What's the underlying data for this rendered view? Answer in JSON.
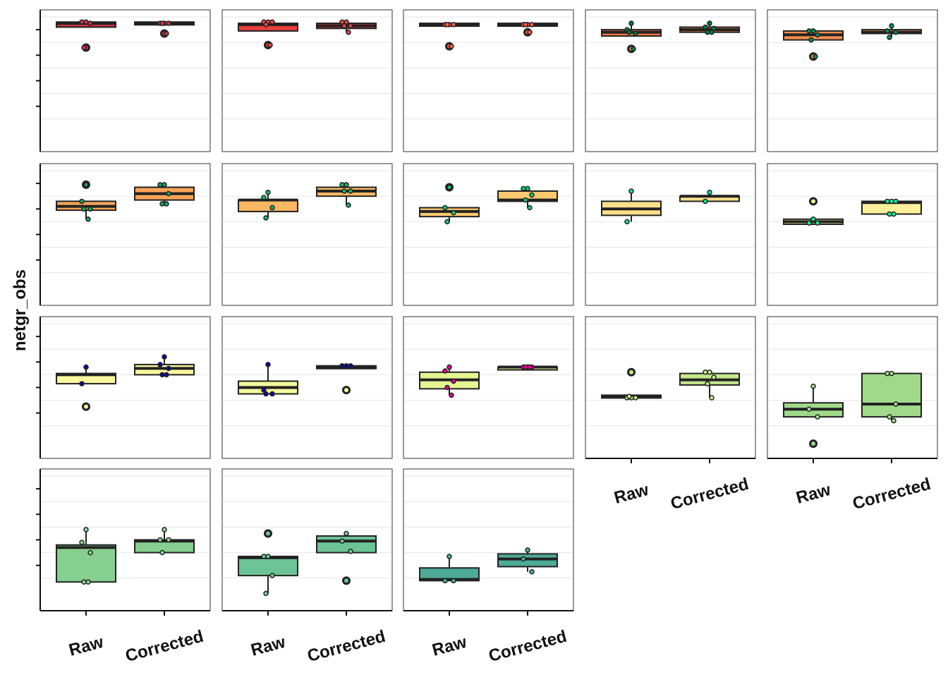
{
  "chart_data": {
    "type": "box",
    "ylabel": "netgr_obs",
    "xlabel": "",
    "categories": [
      "Raw",
      "Corrected"
    ],
    "ylim": [
      0,
      1
    ],
    "grid": true,
    "legend": "none",
    "panels": [
      {
        "fill": "#cb2f45",
        "raw": {
          "q1": 0.92,
          "med": 0.95,
          "q3": 0.96,
          "wmin": 0.96,
          "wmax": 0.96,
          "points": [
            0.96,
            0.96,
            0.95,
            0.76
          ],
          "outliers": [
            0.76
          ]
        },
        "corrected": {
          "q1": 0.94,
          "med": 0.95,
          "q3": 0.96,
          "wmin": 0.96,
          "wmax": 0.96,
          "points": [
            0.95,
            0.95,
            0.95,
            0.95,
            0.87
          ],
          "outliers": [
            0.87
          ]
        }
      },
      {
        "fill": "#e8403d",
        "raw": {
          "q1": 0.89,
          "med": 0.94,
          "q3": 0.95,
          "wmin": 0.96,
          "wmax": 0.96,
          "points": [
            0.96,
            0.96,
            0.96,
            0.94,
            0.78
          ],
          "outliers": [
            0.78
          ]
        },
        "corrected": {
          "q1": 0.91,
          "med": 0.93,
          "q3": 0.95,
          "wmin": 0.88,
          "wmax": 0.96,
          "points": [
            0.96,
            0.96,
            0.93,
            0.93,
            0.88
          ],
          "outliers": []
        }
      },
      {
        "fill": "#f05b42",
        "raw": {
          "q1": 0.93,
          "med": 0.94,
          "q3": 0.95,
          "wmin": 0.94,
          "wmax": 0.95,
          "points": [
            0.94,
            0.94,
            0.94,
            0.94,
            0.77
          ],
          "outliers": [
            0.77
          ]
        },
        "corrected": {
          "q1": 0.93,
          "med": 0.94,
          "q3": 0.95,
          "wmin": 0.94,
          "wmax": 0.95,
          "points": [
            0.94,
            0.94,
            0.94,
            0.94,
            0.88
          ],
          "outliers": [
            0.88
          ]
        }
      },
      {
        "fill": "#f4773f",
        "raw": {
          "q1": 0.85,
          "med": 0.88,
          "q3": 0.9,
          "wmin": 0.85,
          "wmax": 0.95,
          "points": [
            0.95,
            0.9,
            0.87,
            0.88,
            0.75
          ],
          "outliers": [
            0.75
          ]
        },
        "corrected": {
          "q1": 0.88,
          "med": 0.9,
          "q3": 0.92,
          "wmin": 0.88,
          "wmax": 0.95,
          "points": [
            0.95,
            0.92,
            0.91,
            0.88,
            0.88
          ],
          "outliers": []
        }
      },
      {
        "fill": "#f88f4c",
        "raw": {
          "q1": 0.82,
          "med": 0.86,
          "q3": 0.89,
          "wmin": 0.82,
          "wmax": 0.89,
          "points": [
            0.89,
            0.89,
            0.86,
            0.82,
            0.69
          ],
          "outliers": [
            0.69
          ]
        },
        "corrected": {
          "q1": 0.87,
          "med": 0.88,
          "q3": 0.9,
          "wmin": 0.84,
          "wmax": 0.93,
          "points": [
            0.93,
            0.89,
            0.88,
            0.84
          ],
          "outliers": []
        }
      },
      {
        "fill": "#fba558",
        "raw": {
          "q1": 0.69,
          "med": 0.72,
          "q3": 0.76,
          "wmin": 0.62,
          "wmax": 0.76,
          "points": [
            0.89,
            0.76,
            0.7,
            0.7,
            0.62
          ],
          "outliers": [
            0.89
          ]
        },
        "corrected": {
          "q1": 0.77,
          "med": 0.82,
          "q3": 0.87,
          "wmin": 0.74,
          "wmax": 0.89,
          "points": [
            0.89,
            0.89,
            0.82,
            0.74,
            0.74
          ],
          "outliers": []
        }
      },
      {
        "fill": "#fdb863",
        "raw": {
          "q1": 0.68,
          "med": 0.77,
          "q3": 0.77,
          "wmin": 0.63,
          "wmax": 0.83,
          "points": [
            0.83,
            0.79,
            0.71,
            0.63
          ],
          "outliers": []
        },
        "corrected": {
          "q1": 0.8,
          "med": 0.84,
          "q3": 0.87,
          "wmin": 0.73,
          "wmax": 0.89,
          "points": [
            0.89,
            0.89,
            0.84,
            0.84,
            0.73
          ],
          "outliers": []
        }
      },
      {
        "fill": "#fdc96f",
        "raw": {
          "q1": 0.64,
          "med": 0.68,
          "q3": 0.71,
          "wmin": 0.6,
          "wmax": 0.71,
          "points": [
            0.87,
            0.71,
            0.67,
            0.6
          ],
          "outliers": [
            0.87
          ]
        },
        "corrected": {
          "q1": 0.76,
          "med": 0.77,
          "q3": 0.84,
          "wmin": 0.71,
          "wmax": 0.86,
          "points": [
            0.86,
            0.86,
            0.81,
            0.77,
            0.71
          ],
          "outliers": []
        }
      },
      {
        "fill": "#fee08b",
        "raw": {
          "q1": 0.65,
          "med": 0.7,
          "q3": 0.76,
          "wmin": 0.6,
          "wmax": 0.84,
          "points": [
            0.84,
            0.6
          ],
          "outliers": []
        },
        "corrected": {
          "q1": 0.76,
          "med": 0.8,
          "q3": 0.8,
          "wmin": 0.76,
          "wmax": 0.83,
          "points": [
            0.83,
            0.76
          ],
          "outliers": []
        }
      },
      {
        "fill": "#fdf09a",
        "raw": {
          "q1": 0.58,
          "med": 0.6,
          "q3": 0.62,
          "wmin": 0.58,
          "wmax": 0.62,
          "points": [
            0.62,
            0.59,
            0.59
          ],
          "outliers": [
            0.76
          ]
        },
        "corrected": {
          "q1": 0.66,
          "med": 0.75,
          "q3": 0.76,
          "wmin": 0.66,
          "wmax": 0.76,
          "points": [
            0.76,
            0.76,
            0.76,
            0.66,
            0.66
          ],
          "outliers": []
        }
      },
      {
        "fill": "#fbf8a0",
        "raw": {
          "q1": 0.53,
          "med": 0.6,
          "q3": 0.61,
          "wmin": 0.53,
          "wmax": 0.66,
          "points": [
            0.66,
            0.53
          ],
          "outliers": [
            0.35
          ]
        },
        "corrected": {
          "q1": 0.6,
          "med": 0.65,
          "q3": 0.68,
          "wmin": 0.6,
          "wmax": 0.74,
          "points": [
            0.74,
            0.68,
            0.65,
            0.6,
            0.6
          ],
          "outliers": []
        }
      },
      {
        "fill": "#f3fa9b",
        "raw": {
          "q1": 0.45,
          "med": 0.5,
          "q3": 0.55,
          "wmin": 0.45,
          "wmax": 0.68,
          "points": [
            0.68,
            0.48,
            0.45,
            0.45
          ],
          "outliers": []
        },
        "corrected": {
          "q1": 0.66,
          "med": 0.66,
          "q3": 0.67,
          "wmin": 0.66,
          "wmax": 0.66,
          "points": [
            0.67,
            0.67,
            0.67
          ],
          "outliers": [
            0.48
          ]
        }
      },
      {
        "fill": "#e5f592",
        "raw": {
          "q1": 0.49,
          "med": 0.56,
          "q3": 0.62,
          "wmin": 0.44,
          "wmax": 0.66,
          "points": [
            0.66,
            0.63,
            0.55,
            0.5,
            0.44
          ],
          "outliers": []
        },
        "corrected": {
          "q1": 0.66,
          "med": 0.66,
          "q3": 0.66,
          "wmin": 0.66,
          "wmax": 0.66,
          "points": [
            0.66,
            0.66,
            0.66,
            0.66,
            0.66
          ],
          "outliers": []
        }
      },
      {
        "fill": "#c3e88c",
        "raw": {
          "q1": 0.42,
          "med": 0.43,
          "q3": 0.44,
          "wmin": 0.42,
          "wmax": 0.44,
          "points": [
            0.42,
            0.42,
            0.42,
            0.43
          ],
          "outliers": [
            0.62
          ]
        },
        "corrected": {
          "q1": 0.52,
          "med": 0.56,
          "q3": 0.61,
          "wmin": 0.42,
          "wmax": 0.62,
          "points": [
            0.62,
            0.62,
            0.58,
            0.53,
            0.42
          ],
          "outliers": []
        }
      },
      {
        "fill": "#a1d98b",
        "raw": {
          "q1": 0.27,
          "med": 0.33,
          "q3": 0.38,
          "wmin": 0.27,
          "wmax": 0.51,
          "points": [
            0.51,
            0.33,
            0.27
          ],
          "outliers": [
            0.06
          ]
        },
        "corrected": {
          "q1": 0.27,
          "med": 0.37,
          "q3": 0.61,
          "wmin": 0.24,
          "wmax": 0.61,
          "points": [
            0.61,
            0.61,
            0.37,
            0.27,
            0.24
          ],
          "outliers": []
        }
      },
      {
        "fill": "#86cf90",
        "raw": {
          "q1": 0.17,
          "med": 0.44,
          "q3": 0.46,
          "wmin": 0.17,
          "wmax": 0.58,
          "points": [
            0.58,
            0.48,
            0.4,
            0.17,
            0.17
          ],
          "outliers": []
        },
        "corrected": {
          "q1": 0.4,
          "med": 0.49,
          "q3": 0.5,
          "wmin": 0.4,
          "wmax": 0.58,
          "points": [
            0.58,
            0.5,
            0.5,
            0.4
          ],
          "outliers": []
        }
      },
      {
        "fill": "#6cc496",
        "raw": {
          "q1": 0.22,
          "med": 0.36,
          "q3": 0.37,
          "wmin": 0.08,
          "wmax": 0.37,
          "points": [
            0.37,
            0.37,
            0.22,
            0.08
          ],
          "outliers": [
            0.55
          ]
        },
        "corrected": {
          "q1": 0.4,
          "med": 0.49,
          "q3": 0.53,
          "wmin": 0.4,
          "wmax": 0.55,
          "points": [
            0.55,
            0.49,
            0.41
          ],
          "outliers": [
            0.18
          ]
        }
      },
      {
        "fill": "#4dab97",
        "raw": {
          "q1": 0.18,
          "med": 0.19,
          "q3": 0.28,
          "wmin": 0.18,
          "wmax": 0.37,
          "points": [
            0.37,
            0.18,
            0.18
          ],
          "outliers": []
        },
        "corrected": {
          "q1": 0.29,
          "med": 0.35,
          "q3": 0.39,
          "wmin": 0.25,
          "wmax": 0.42,
          "points": [
            0.42,
            0.35,
            0.25
          ],
          "outliers": []
        }
      }
    ]
  }
}
